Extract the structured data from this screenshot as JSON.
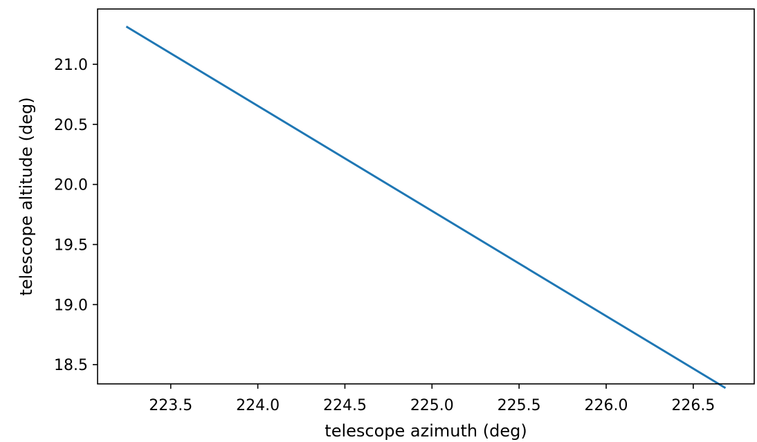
{
  "chart_data": {
    "type": "line",
    "title": "",
    "xlabel": "telescope azimuth (deg)",
    "ylabel": "telescope altitude (deg)",
    "xlim": [
      223.08,
      226.85
    ],
    "ylim": [
      18.34,
      21.46
    ],
    "xticks": [
      223.5,
      224.0,
      224.5,
      225.0,
      225.5,
      226.0,
      226.5
    ],
    "xtick_labels": [
      "223.5",
      "224.0",
      "224.5",
      "225.0",
      "225.5",
      "226.0",
      "226.5"
    ],
    "yticks": [
      18.5,
      19.0,
      19.5,
      20.0,
      20.5,
      21.0
    ],
    "ytick_labels": [
      "18.5",
      "19.0",
      "19.5",
      "20.0",
      "20.5",
      "21.0"
    ],
    "grid": false,
    "legend": "none",
    "series": [
      {
        "color": "#1f77b4",
        "x": [
          223.25,
          226.68
        ],
        "y": [
          21.31,
          18.31
        ]
      }
    ]
  }
}
